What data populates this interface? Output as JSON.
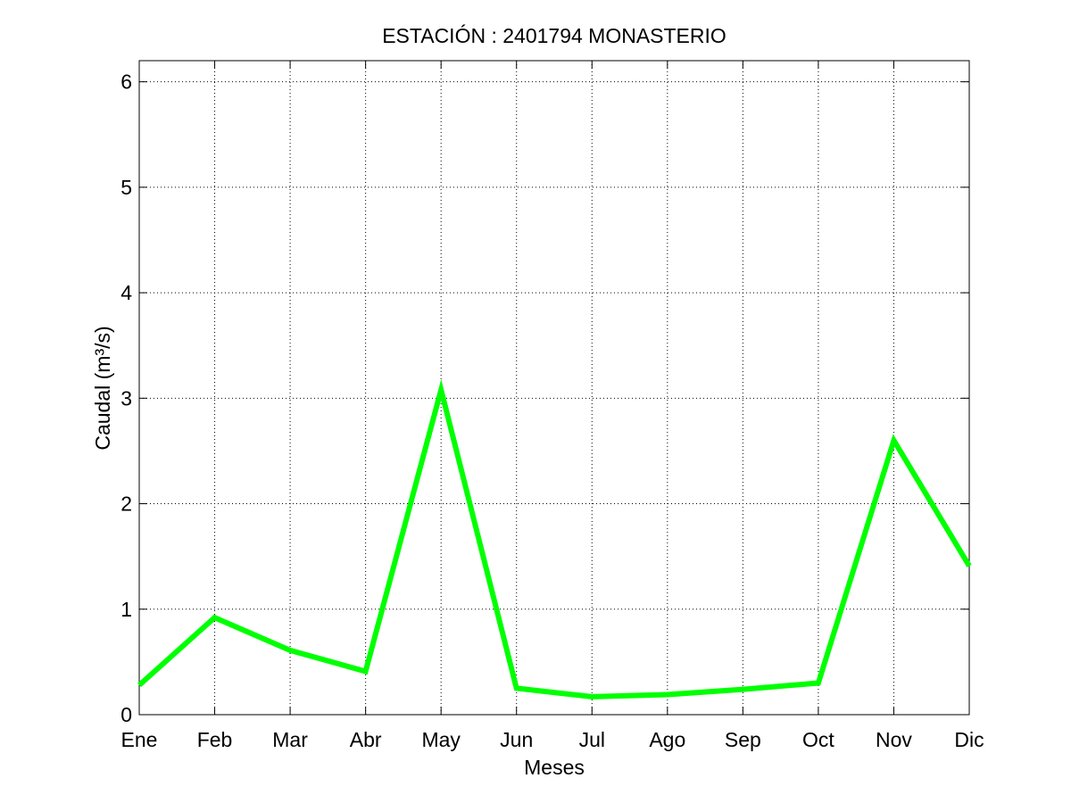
{
  "chart_data": {
    "type": "line",
    "title": "ESTACIÓN :  2401794  MONASTERIO",
    "xlabel": "Meses",
    "ylabel": "Caudal (m³/s)",
    "categories": [
      "Ene",
      "Feb",
      "Mar",
      "Abr",
      "May",
      "Jun",
      "Jul",
      "Ago",
      "Sep",
      "Oct",
      "Nov",
      "Dic"
    ],
    "series": [
      {
        "values": [
          0.28,
          0.92,
          0.61,
          0.41,
          3.08,
          0.25,
          0.17,
          0.19,
          0.24,
          0.3,
          2.6,
          1.41
        ],
        "color": "#00ff00"
      }
    ],
    "ylim": [
      0,
      6.2
    ],
    "yticks": [
      0,
      1,
      2,
      3,
      4,
      5,
      6
    ],
    "grid": true
  }
}
